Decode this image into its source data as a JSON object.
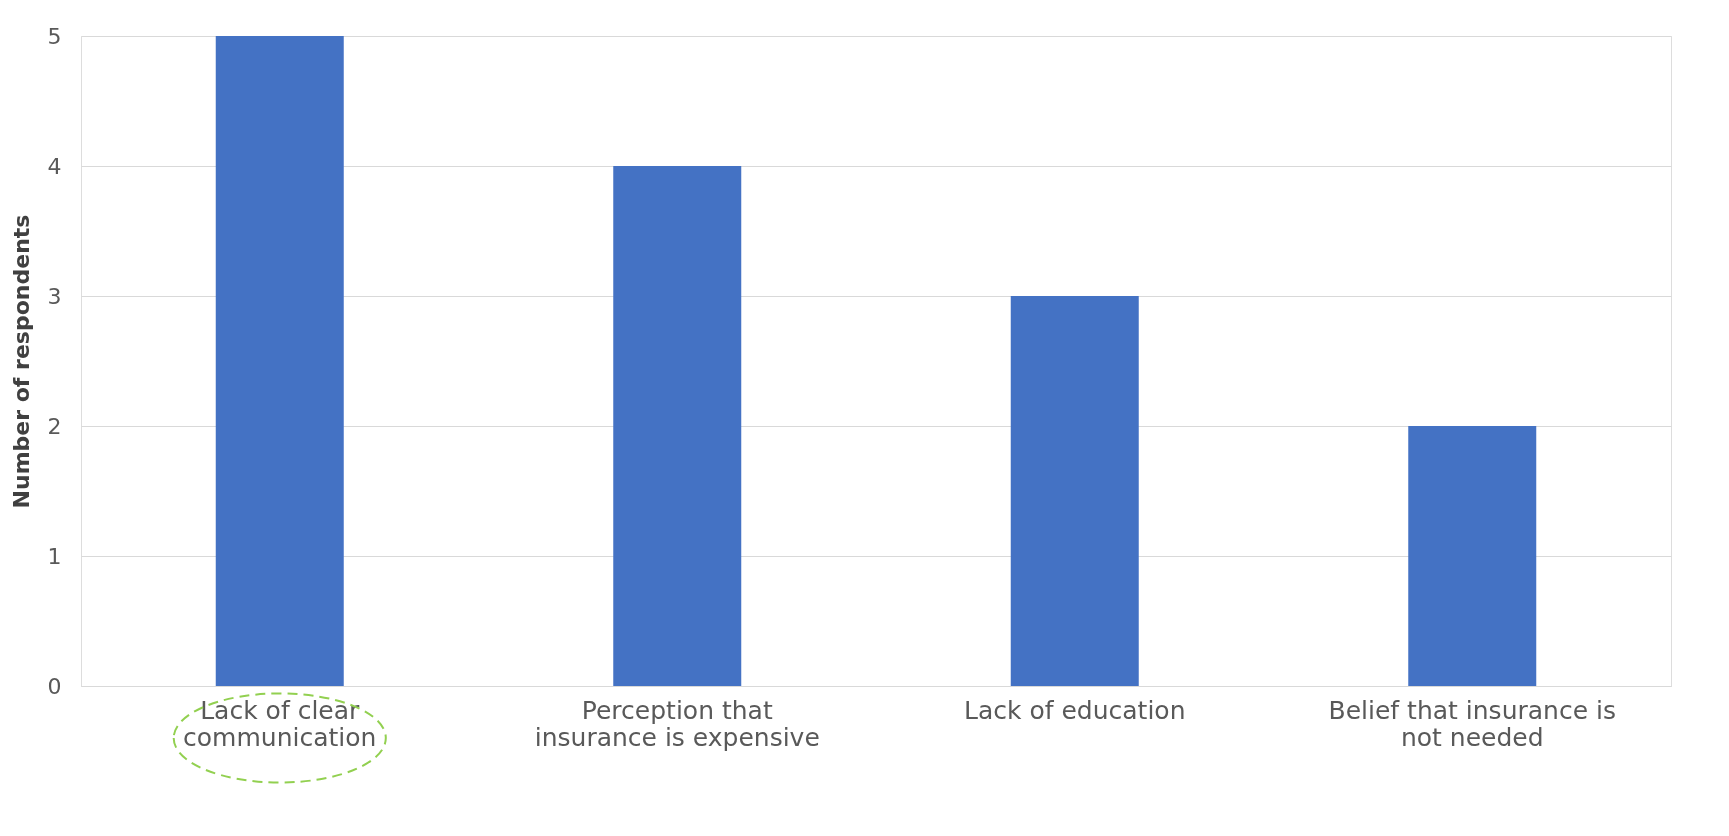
{
  "chart_data": {
    "type": "bar",
    "categories": [
      "Lack of clear communication",
      "Perception that insurance is expensive",
      "Lack of education",
      "Belief that insurance is not needed"
    ],
    "values": [
      5,
      4,
      3,
      2
    ],
    "color": "#4472c4",
    "ylabel": "Number of respondents",
    "ylim": [
      0,
      5
    ],
    "yticks": [
      0,
      1,
      2,
      3,
      4,
      5
    ],
    "grid": "y"
  }
}
